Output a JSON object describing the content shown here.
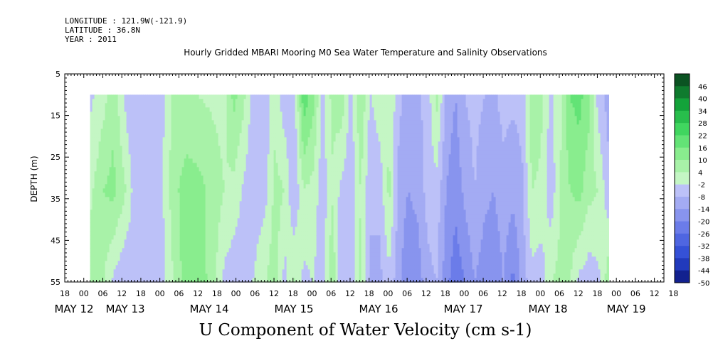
{
  "header": {
    "longitude": "LONGITUDE : 121.9W(-121.9)",
    "latitude": "LATITUDE : 36.8N",
    "year": "YEAR : 2011"
  },
  "title": "Hourly Gridded MBARI Mooring M0 Sea Water Temperature and Salinity Observations",
  "bottom_title": "U Component of Water Velocity (cm s-1)",
  "chart_data": {
    "type": "heatmap",
    "ylabel": "DEPTH (m)",
    "variable": "U Component of Water Velocity (cm s-1)",
    "y_ticks": [
      5,
      15,
      25,
      35,
      45,
      55
    ],
    "ylim": [
      55,
      5
    ],
    "y_reversed": true,
    "data_depth_range": [
      10,
      55
    ],
    "x_range_hours": [
      -6,
      183
    ],
    "x_hour_ticks": [
      "18",
      "00",
      "06",
      "12",
      "18",
      "00",
      "06",
      "12",
      "18",
      "00",
      "06",
      "12",
      "18",
      "00",
      "06",
      "12",
      "18",
      "00",
      "06",
      "12",
      "18",
      "00",
      "06",
      "12",
      "18",
      "00",
      "06",
      "12",
      "18",
      "00",
      "06",
      "12",
      "18"
    ],
    "x_date_labels": [
      "MAY 12",
      "MAY 13",
      "MAY 14",
      "MAY 15",
      "MAY 16",
      "MAY 17",
      "MAY 18",
      "MAY 19"
    ],
    "colorbar_labels": [
      "46",
      "40",
      "34",
      "28",
      "22",
      "16",
      "10",
      "4",
      "-2",
      "-8",
      "-14",
      "-20",
      "-26",
      "-32",
      "-38",
      "-44",
      "-50"
    ],
    "colorbar_range": [
      -50,
      52
    ],
    "colorbar_step": 6,
    "profiles": [
      {
        "hour": 2,
        "top": -3,
        "mid": 3,
        "bottom": 8
      },
      {
        "hour": 6,
        "top": 2,
        "mid": 10,
        "bottom": 4
      },
      {
        "hour": 9,
        "top": 8,
        "mid": 12,
        "bottom": -4
      },
      {
        "hour": 13,
        "top": -4,
        "mid": 4,
        "bottom": -8
      },
      {
        "hour": 16,
        "top": -8,
        "mid": -6,
        "bottom": -4
      },
      {
        "hour": 20,
        "top": -6,
        "mid": -5,
        "bottom": -2
      },
      {
        "hour": 24,
        "top": -5,
        "mid": -4,
        "bottom": -6
      },
      {
        "hour": 28,
        "top": 6,
        "mid": 8,
        "bottom": 4
      },
      {
        "hour": 32,
        "top": 5,
        "mid": 13,
        "bottom": 14
      },
      {
        "hour": 36,
        "top": 4,
        "mid": 12,
        "bottom": 13
      },
      {
        "hour": 40,
        "top": 3,
        "mid": 8,
        "bottom": 8
      },
      {
        "hour": 44,
        "top": 2,
        "mid": 4,
        "bottom": -4
      },
      {
        "hour": 47,
        "top": 12,
        "mid": 2,
        "bottom": -6
      },
      {
        "hour": 50,
        "top": 6,
        "mid": -3,
        "bottom": -6
      },
      {
        "hour": 53,
        "top": -5,
        "mid": -6,
        "bottom": -2
      },
      {
        "hour": 57,
        "top": -6,
        "mid": -4,
        "bottom": 4
      },
      {
        "hour": 60,
        "top": 2,
        "mid": 6,
        "bottom": 8
      },
      {
        "hour": 63,
        "top": -6,
        "mid": 4,
        "bottom": -5
      },
      {
        "hour": 66,
        "top": -6,
        "mid": -8,
        "bottom": 5
      },
      {
        "hour": 69,
        "top": 20,
        "mid": 4,
        "bottom": -4
      },
      {
        "hour": 72,
        "top": 12,
        "mid": 2,
        "bottom": -2
      },
      {
        "hour": 75,
        "top": -4,
        "mid": -6,
        "bottom": -6
      },
      {
        "hour": 78,
        "top": 6,
        "mid": 3,
        "bottom": 10
      },
      {
        "hour": 81,
        "top": 8,
        "mid": -4,
        "bottom": -8
      },
      {
        "hour": 84,
        "top": -5,
        "mid": -6,
        "bottom": -8
      },
      {
        "hour": 87,
        "top": 10,
        "mid": 4,
        "bottom": 6
      },
      {
        "hour": 90,
        "top": -3,
        "mid": -7,
        "bottom": -9
      },
      {
        "hour": 93,
        "top": 2,
        "mid": -6,
        "bottom": -10
      },
      {
        "hour": 96,
        "top": 3,
        "mid": 6,
        "bottom": -4
      },
      {
        "hour": 99,
        "top": -6,
        "mid": -10,
        "bottom": -12
      },
      {
        "hour": 102,
        "top": -12,
        "mid": -14,
        "bottom": -20
      },
      {
        "hour": 105,
        "top": -9,
        "mid": -12,
        "bottom": -18
      },
      {
        "hour": 108,
        "top": -6,
        "mid": -6,
        "bottom": -10
      },
      {
        "hour": 111,
        "top": 6,
        "mid": -4,
        "bottom": -8
      },
      {
        "hour": 114,
        "top": -10,
        "mid": -14,
        "bottom": -18
      },
      {
        "hour": 117,
        "top": -14,
        "mid": -18,
        "bottom": -24
      },
      {
        "hour": 120,
        "top": -8,
        "mid": -12,
        "bottom": -20
      },
      {
        "hour": 123,
        "top": -6,
        "mid": -8,
        "bottom": -14
      },
      {
        "hour": 126,
        "top": -8,
        "mid": -12,
        "bottom": -18
      },
      {
        "hour": 129,
        "top": -9,
        "mid": -14,
        "bottom": -20
      },
      {
        "hour": 132,
        "top": -6,
        "mid": -10,
        "bottom": -14
      },
      {
        "hour": 135,
        "top": -7,
        "mid": -12,
        "bottom": -22
      },
      {
        "hour": 138,
        "top": -6,
        "mid": -9,
        "bottom": -12
      },
      {
        "hour": 141,
        "top": 8,
        "mid": 4,
        "bottom": -4
      },
      {
        "hour": 144,
        "top": 5,
        "mid": 3,
        "bottom": -6
      },
      {
        "hour": 147,
        "top": -4,
        "mid": -6,
        "bottom": 4
      },
      {
        "hour": 150,
        "top": 3,
        "mid": 4,
        "bottom": 6
      },
      {
        "hour": 153,
        "top": 16,
        "mid": 10,
        "bottom": 4
      },
      {
        "hour": 156,
        "top": 18,
        "mid": 12,
        "bottom": -4
      },
      {
        "hour": 159,
        "top": 12,
        "mid": 6,
        "bottom": -6
      },
      {
        "hour": 162,
        "top": -5,
        "mid": 4,
        "bottom": -4
      },
      {
        "hour": 165,
        "top": -10,
        "mid": -6,
        "bottom": 8
      }
    ]
  }
}
